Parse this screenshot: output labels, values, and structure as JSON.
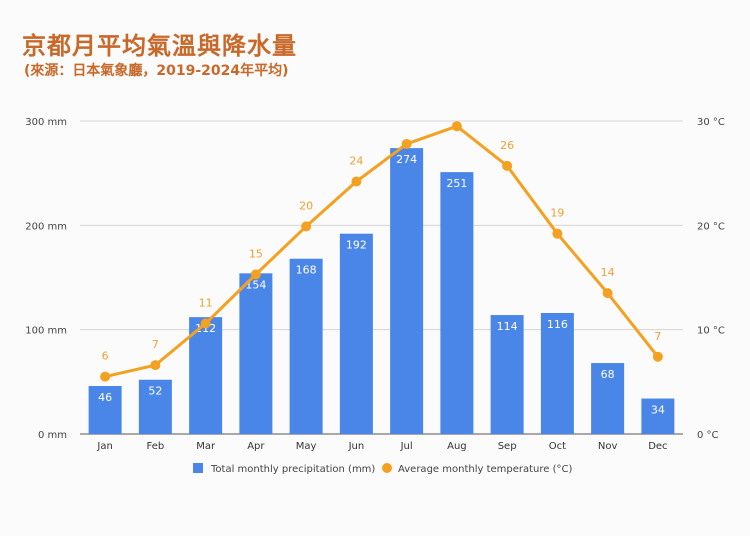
{
  "header": {
    "title": "京都月平均氣溫與降水量",
    "subtitle": "(來源：日本氣象廳，2019-2024年平均)"
  },
  "chart_data": {
    "type": "bar",
    "categories": [
      "Jan",
      "Feb",
      "Mar",
      "Apr",
      "May",
      "Jun",
      "Jul",
      "Aug",
      "Sep",
      "Oct",
      "Nov",
      "Dec"
    ],
    "series": [
      {
        "name": "Total monthly precipitation (mm)",
        "kind": "bar",
        "axis": "left",
        "color": "#4a86e8",
        "values": [
          46,
          52,
          112,
          154,
          168,
          192,
          274,
          251,
          114,
          116,
          68,
          34
        ]
      },
      {
        "name": "Average monthly temperature (°C)",
        "kind": "line",
        "axis": "right",
        "color": "#f4a020",
        "values": [
          5.5,
          6.6,
          10.6,
          15.3,
          19.9,
          24.2,
          27.8,
          29.5,
          25.7,
          19.2,
          13.5,
          7.4
        ],
        "labels": [
          "6",
          "7",
          "11",
          "15",
          "20",
          "24",
          "",
          "",
          "26",
          "19",
          "14",
          "7"
        ]
      }
    ],
    "y_left": {
      "ticks": [
        "0 mm",
        "100 mm",
        "200 mm",
        "300 mm"
      ],
      "range": [
        0,
        300
      ]
    },
    "y_right": {
      "ticks": [
        "0 °C",
        "10 °C",
        "20 °C",
        "30 °C"
      ],
      "range": [
        0,
        30
      ]
    },
    "legend_position": "bottom",
    "grid": true
  }
}
